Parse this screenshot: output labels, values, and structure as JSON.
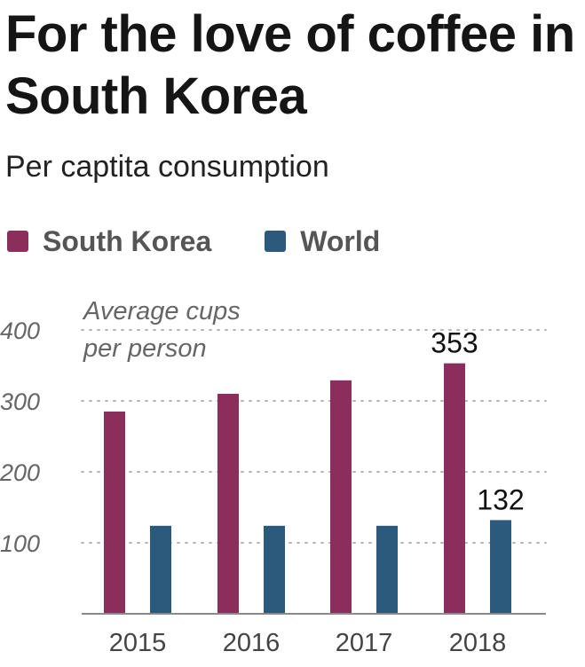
{
  "title": "For the love of coffee in South Korea",
  "subtitle": "Per captita consumption",
  "legend": [
    {
      "name": "South Korea",
      "color": "#8b2e5c"
    },
    {
      "name": "World",
      "color": "#2c5a7d"
    }
  ],
  "chart_data": {
    "type": "bar",
    "categories": [
      "2015",
      "2016",
      "2017",
      "2018"
    ],
    "series": [
      {
        "name": "South Korea",
        "values": [
          285,
          310,
          329,
          353
        ],
        "color": "#8b2e5c"
      },
      {
        "name": "World",
        "values": [
          124,
          124,
          124,
          132
        ],
        "color": "#2c5a7d"
      }
    ],
    "ylabel_lines": [
      "Average cups",
      "per person"
    ],
    "yticks": [
      100,
      200,
      300,
      400
    ],
    "ylim": [
      0,
      400
    ],
    "grid": true,
    "annotations": [
      {
        "series": "South Korea",
        "category": "2018",
        "text": "353"
      },
      {
        "series": "World",
        "category": "2018",
        "text": "132"
      }
    ]
  }
}
